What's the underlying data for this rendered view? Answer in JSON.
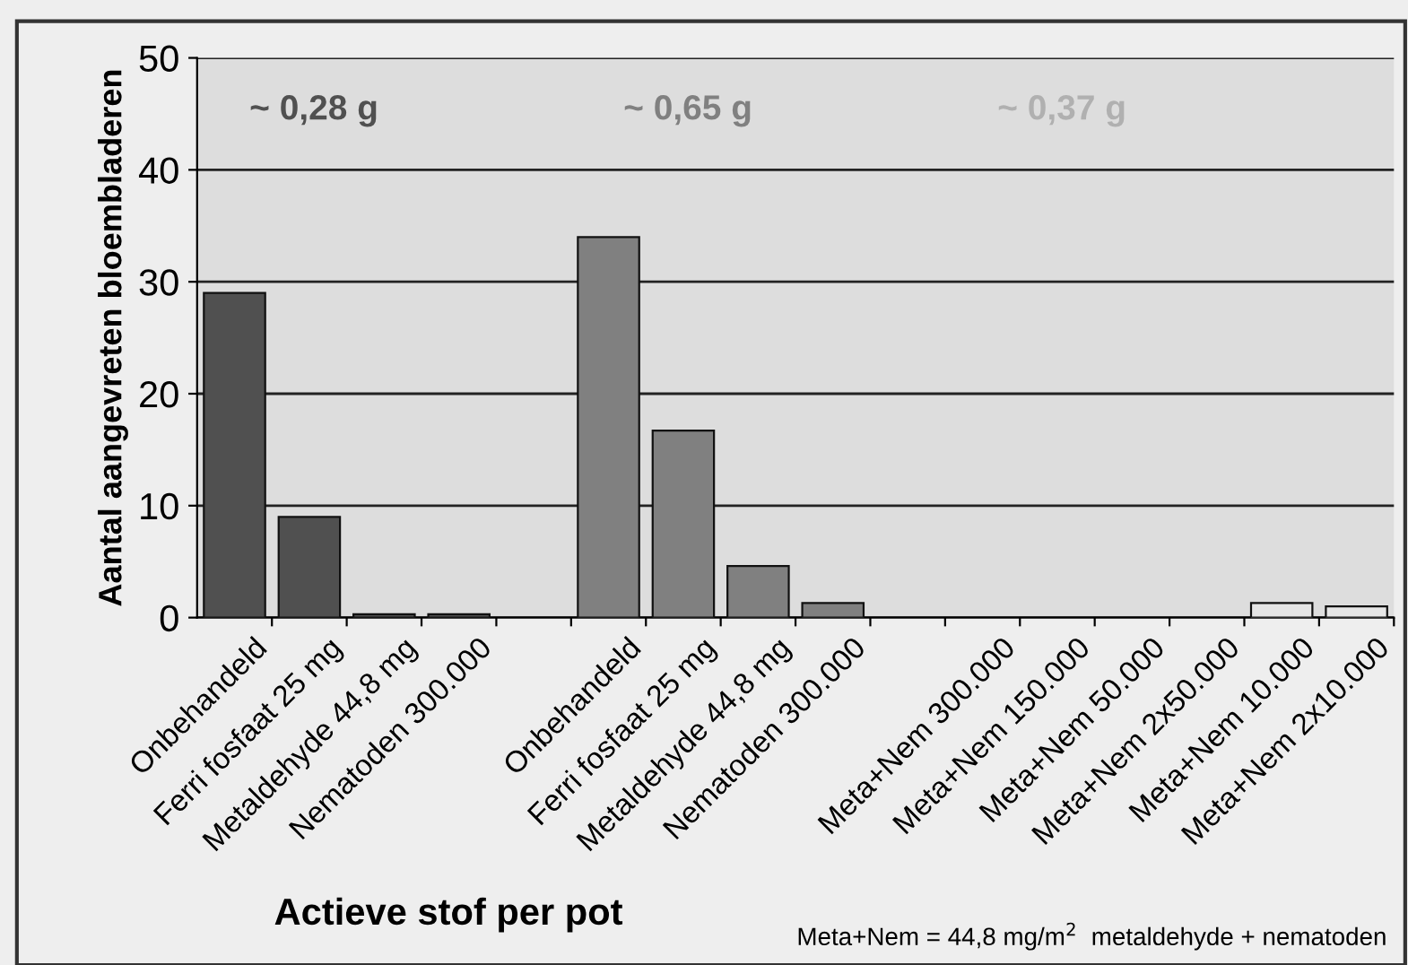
{
  "chart_data": {
    "type": "bar",
    "xlabel": "Actieve stof per pot",
    "ylabel": "Aantal aangevreten bloembladeren",
    "categories": [
      "Onbehandeld",
      "Ferri fosfaat 25 mg",
      "Metaldehyde 44,8 mg",
      "Nematoden 300.000",
      null,
      "Onbehandeld",
      "Ferri fosfaat 25 mg",
      "Metaldehyde 44,8 mg",
      "Nematoden 300.000",
      null,
      "Meta+Nem 300.000",
      "Meta+Nem 150.000",
      "Meta+Nem 50.000",
      "Meta+Nem 2x50.000",
      "Meta+Nem 10.000",
      "Meta+Nem 2x10.000"
    ],
    "values": [
      29,
      9,
      0.3,
      0.3,
      null,
      34,
      16.7,
      4.6,
      1.3,
      null,
      0,
      0,
      0,
      0,
      1.3,
      1.0
    ],
    "colors": [
      "#505050",
      "#505050",
      "#505050",
      "#505050",
      "#505050",
      "#808080",
      "#808080",
      "#808080",
      "#808080",
      "#808080",
      "#e6e6e6",
      "#e6e6e6",
      "#e6e6e6",
      "#e6e6e6",
      "#e6e6e6",
      "#e6e6e6"
    ],
    "ylim": [
      0,
      50
    ],
    "yticks": [
      0,
      10,
      20,
      30,
      40,
      50
    ],
    "grid": "y",
    "legend": false,
    "annotations": [
      "~ 0,28 g",
      "~ 0,65 g",
      "~ 0,37 g",
      "Meta+Nem = 44,8 mg/m$^{2}$  metaldehyde + nematoden"
    ]
  }
}
